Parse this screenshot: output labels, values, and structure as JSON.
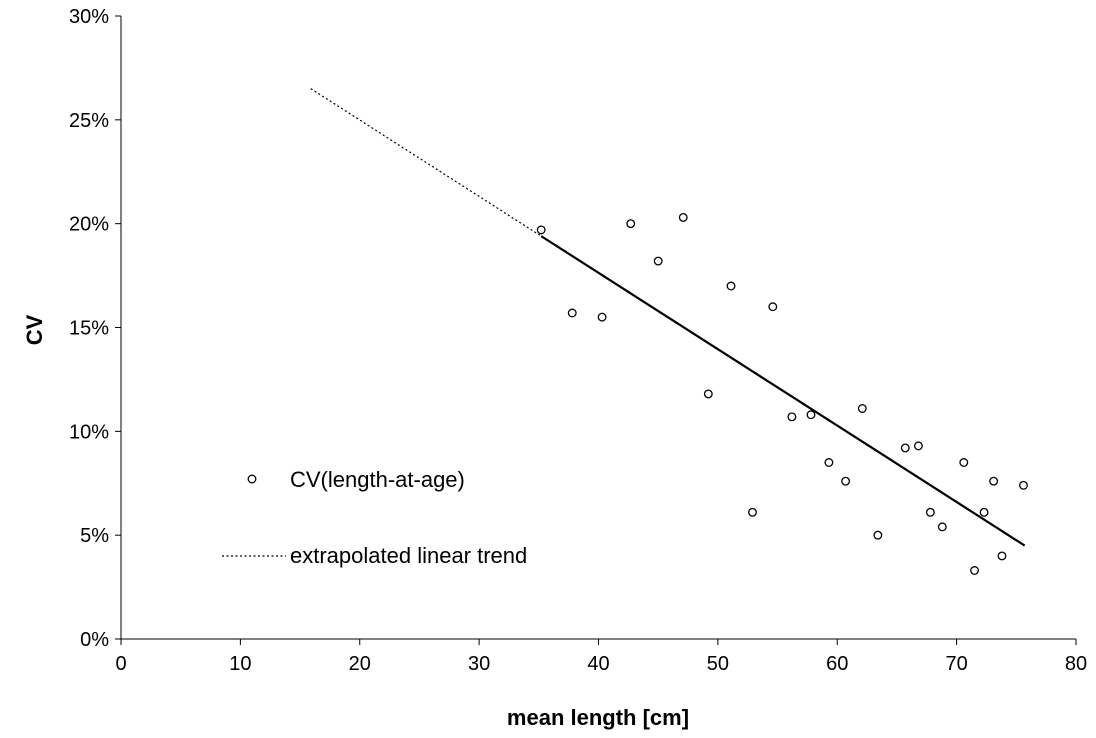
{
  "chart_data": {
    "type": "scatter",
    "xlabel": "mean length [cm]",
    "ylabel": "CV",
    "xlim": [
      0,
      80
    ],
    "ylim": [
      0,
      0.3
    ],
    "x_ticks": [
      0,
      10,
      20,
      30,
      40,
      50,
      60,
      70,
      80
    ],
    "x_tick_labels": [
      "0",
      "10",
      "20",
      "30",
      "40",
      "50",
      "60",
      "70",
      "80"
    ],
    "y_ticks": [
      0,
      0.05,
      0.1,
      0.15,
      0.2,
      0.25,
      0.3
    ],
    "y_tick_labels": [
      "0%",
      "5%",
      "10%",
      "15%",
      "20%",
      "25%",
      "30%"
    ],
    "grid": false,
    "legend_position": "left-middle",
    "series": [
      {
        "name": "CV(length-at-age)",
        "kind": "scatter",
        "marker": "open-circle",
        "color": "#000000",
        "points": [
          [
            35.2,
            0.197
          ],
          [
            37.8,
            0.157
          ],
          [
            40.3,
            0.155
          ],
          [
            42.7,
            0.2
          ],
          [
            45.0,
            0.182
          ],
          [
            47.1,
            0.203
          ],
          [
            49.2,
            0.118
          ],
          [
            51.1,
            0.17
          ],
          [
            52.9,
            0.061
          ],
          [
            54.6,
            0.16
          ],
          [
            56.2,
            0.107
          ],
          [
            57.8,
            0.108
          ],
          [
            59.3,
            0.085
          ],
          [
            60.7,
            0.076
          ],
          [
            62.1,
            0.111
          ],
          [
            63.4,
            0.05
          ],
          [
            65.7,
            0.092
          ],
          [
            66.8,
            0.093
          ],
          [
            67.8,
            0.061
          ],
          [
            68.8,
            0.054
          ],
          [
            70.6,
            0.085
          ],
          [
            71.5,
            0.033
          ],
          [
            72.3,
            0.061
          ],
          [
            73.1,
            0.076
          ],
          [
            73.8,
            0.04
          ],
          [
            75.6,
            0.074
          ]
        ]
      },
      {
        "name": "linear trend",
        "kind": "line",
        "style": "solid",
        "color": "#000000",
        "points": [
          [
            35.2,
            0.194
          ],
          [
            75.7,
            0.045
          ]
        ]
      },
      {
        "name": "extrapolated linear trend",
        "kind": "line",
        "style": "dotted",
        "color": "#000000",
        "points": [
          [
            15.9,
            0.265
          ],
          [
            35.2,
            0.194
          ]
        ]
      }
    ],
    "legend": [
      {
        "label": "CV(length-at-age)",
        "marker": "open-circle"
      },
      {
        "label": "extrapolated linear trend",
        "marker": "dotted-line"
      }
    ]
  }
}
